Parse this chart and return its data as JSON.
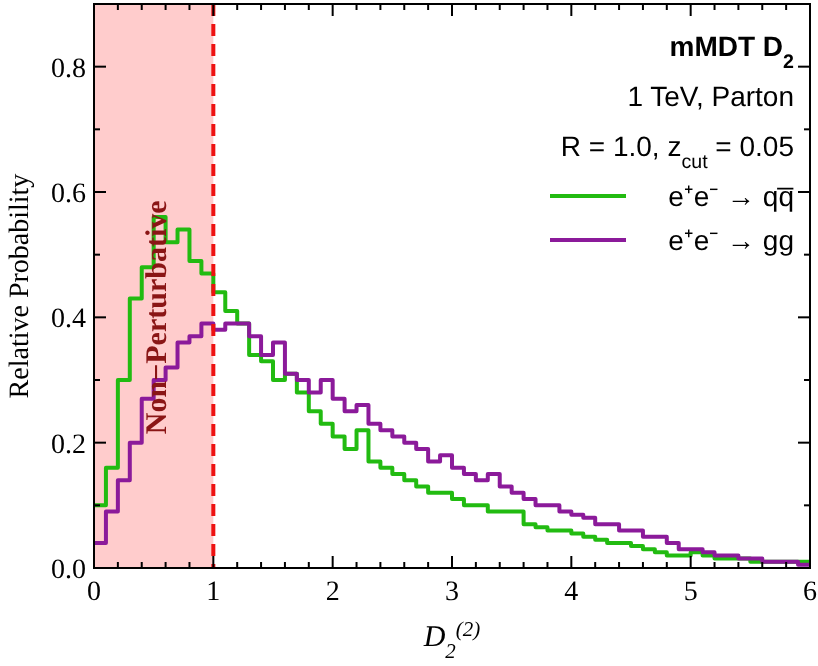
{
  "chart_data": {
    "type": "histogram",
    "title": "mMDT D$_{2}$",
    "annotations": [
      "1 TeV, Parton",
      "R = 1.0, z$_{cut}$ = 0.05"
    ],
    "xlabel": "D$_{2}$$^{(2)}$",
    "ylabel": "Relative Probability",
    "bins": [
      0,
      0.1,
      0.2,
      0.3,
      0.4,
      0.5,
      0.6,
      0.7,
      0.8,
      0.9,
      1,
      1.1,
      1.2,
      1.3,
      1.4,
      1.5,
      1.6,
      1.7,
      1.8,
      1.9,
      2,
      2.1,
      2.2,
      2.3,
      2.4,
      2.5,
      2.6,
      2.7,
      2.8,
      2.9,
      3,
      3.1,
      3.2,
      3.3,
      3.4,
      3.5,
      3.6,
      3.7,
      3.8,
      3.9,
      4,
      4.1,
      4.2,
      4.3,
      4.4,
      4.5,
      4.6,
      4.7,
      4.8,
      4.9,
      5,
      5.1,
      5.2,
      5.3,
      5.4,
      5.5,
      5.6,
      5.7,
      5.8,
      5.9,
      6
    ],
    "series": [
      {
        "name": "e⁺e⁻ → qq̅",
        "color": "#22bb11",
        "values": [
          0.1,
          0.16,
          0.3,
          0.43,
          0.48,
          0.56,
          0.52,
          0.54,
          0.49,
          0.47,
          0.44,
          0.41,
          0.39,
          0.34,
          0.33,
          0.3,
          0.31,
          0.28,
          0.25,
          0.23,
          0.21,
          0.19,
          0.22,
          0.17,
          0.16,
          0.15,
          0.14,
          0.13,
          0.12,
          0.12,
          0.11,
          0.1,
          0.1,
          0.09,
          0.09,
          0.09,
          0.07,
          0.065,
          0.06,
          0.06,
          0.055,
          0.05,
          0.045,
          0.04,
          0.04,
          0.035,
          0.03,
          0.025,
          0.02,
          0.02,
          0.025,
          0.02,
          0.015,
          0.015,
          0.015,
          0.01,
          0.01,
          0.01,
          0.01,
          0.01
        ]
      },
      {
        "name": "e⁺e⁻ → gg",
        "color": "#8b1a9a",
        "values": [
          0.04,
          0.09,
          0.14,
          0.2,
          0.27,
          0.3,
          0.32,
          0.36,
          0.37,
          0.39,
          0.38,
          0.39,
          0.39,
          0.37,
          0.34,
          0.36,
          0.31,
          0.3,
          0.28,
          0.3,
          0.27,
          0.25,
          0.26,
          0.23,
          0.22,
          0.21,
          0.2,
          0.19,
          0.17,
          0.18,
          0.16,
          0.15,
          0.14,
          0.15,
          0.13,
          0.12,
          0.11,
          0.1,
          0.1,
          0.09,
          0.085,
          0.08,
          0.07,
          0.07,
          0.06,
          0.06,
          0.05,
          0.05,
          0.04,
          0.03,
          0.03,
          0.025,
          0.02,
          0.02,
          0.015,
          0.015,
          0.01,
          0.01,
          0.01,
          0.005
        ]
      }
    ],
    "xlim": [
      0,
      6
    ],
    "ylim": [
      0,
      0.9
    ],
    "xticks": [
      0,
      1,
      2,
      3,
      4,
      5,
      6
    ],
    "yticks": [
      {
        "value": 0,
        "label": "0.0"
      },
      {
        "value": 0.2,
        "label": "0.2"
      },
      {
        "value": 0.4,
        "label": "0.4"
      },
      {
        "value": 0.6,
        "label": "0.6"
      },
      {
        "value": 0.8,
        "label": "0.8"
      }
    ],
    "bands": [
      {
        "axis": "x",
        "from": 0,
        "to": 1,
        "label": "Non−Perturbative",
        "color": "#ffcccc"
      }
    ],
    "ref_lines": [
      {
        "axis": "x",
        "value": 1,
        "color": "#ee1111",
        "line_style": "dashed"
      }
    ],
    "legend": "top right",
    "grid": false
  }
}
